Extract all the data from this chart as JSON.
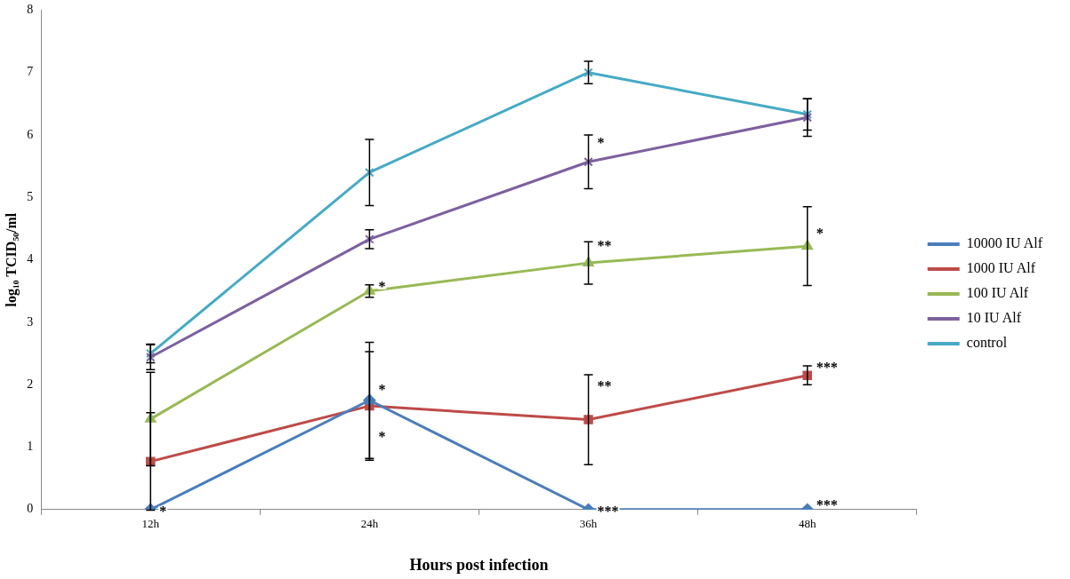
{
  "chart_data": {
    "type": "line",
    "xlabel": "Hours post infection",
    "ylabel": "log₁₀ TCID₅₀/ml",
    "categories": [
      "12h",
      "24h",
      "36h",
      "48h"
    ],
    "ylim": [
      0,
      8
    ],
    "yticks": [
      0,
      1,
      2,
      3,
      4,
      5,
      6,
      7,
      8
    ],
    "grid": false,
    "legend": "right",
    "line_style": "solid",
    "series": [
      {
        "name": "10000 IU Alf",
        "color": "#4a7ebb",
        "marker": "diamond",
        "values": [
          0,
          1.75,
          0,
          0
        ],
        "errors": [
          null,
          0.93,
          null,
          null
        ]
      },
      {
        "name": "1000 IU Alf",
        "color": "#be4b48",
        "marker": "square",
        "values": [
          0.77,
          1.66,
          1.44,
          2.15
        ],
        "errors": [
          0.78,
          0.87,
          0.72,
          0.15
        ]
      },
      {
        "name": "100 IU Alf",
        "color": "#98b954",
        "marker": "triangle",
        "values": [
          1.45,
          3.5,
          3.95,
          4.22
        ],
        "errors": [
          0.75,
          0.1,
          0.34,
          0.63
        ]
      },
      {
        "name": "10 IU Alf",
        "color": "#7d60a0",
        "marker": "cross",
        "values": [
          2.44,
          4.33,
          5.57,
          6.28
        ],
        "errors": [
          0.2,
          0.15,
          0.43,
          0.3
        ]
      },
      {
        "name": "control",
        "color": "#46aac5",
        "marker": "cross",
        "values": [
          2.5,
          5.4,
          7.0,
          6.33
        ],
        "errors": [
          0.15,
          0.53,
          0.18,
          0.25
        ]
      }
    ],
    "annotations": [
      {
        "text": "*",
        "x": "12h",
        "y": 0
      },
      {
        "text": "*",
        "x": "24h",
        "y": 1.95
      },
      {
        "text": "*",
        "x": "24h",
        "y": 1.2
      },
      {
        "text": "*",
        "x": "24h",
        "y": 3.6
      },
      {
        "text": "**",
        "x": "36h",
        "y": 2.0
      },
      {
        "text": "***",
        "x": "36h",
        "y": 0
      },
      {
        "text": "**",
        "x": "36h",
        "y": 4.25
      },
      {
        "text": "*",
        "x": "36h",
        "y": 5.9
      },
      {
        "text": "***",
        "x": "48h",
        "y": 2.3
      },
      {
        "text": "***",
        "x": "48h",
        "y": 0.1
      },
      {
        "text": "*",
        "x": "48h",
        "y": 4.45
      }
    ]
  }
}
